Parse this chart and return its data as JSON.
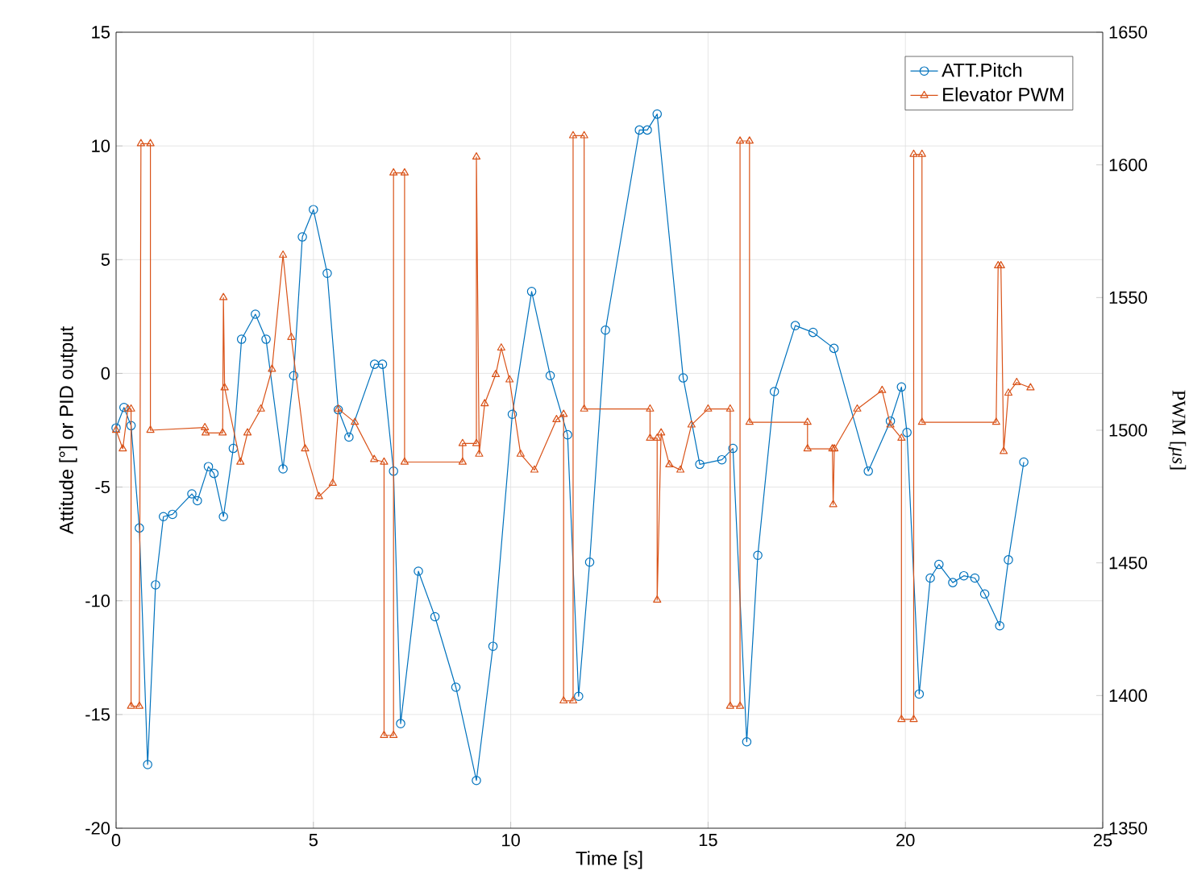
{
  "chart_data": {
    "type": "line",
    "xlabel": "Time [s]",
    "ylabel": "Attitude [°] or PID output",
    "y2label": "PWM [*μs*]",
    "xlim": [
      0,
      25
    ],
    "xticks": [
      0,
      5,
      10,
      15,
      20,
      25
    ],
    "ylim": [
      -20,
      15
    ],
    "yticks": [
      -20,
      -15,
      -10,
      -5,
      0,
      5,
      10,
      15
    ],
    "y2lim": [
      1350,
      1650
    ],
    "y2ticks": [
      1350,
      1400,
      1450,
      1500,
      1550,
      1600,
      1650
    ],
    "grid": true,
    "legend": "top right",
    "series": [
      {
        "name": "ATT.Pitch",
        "color": "#0072bd",
        "marker": "circle",
        "x": [
          0,
          0.2,
          0.38,
          0.59,
          0.8,
          1.0,
          1.2,
          1.43,
          1.92,
          2.06,
          2.34,
          2.48,
          2.72,
          2.97,
          3.18,
          3.53,
          3.8,
          4.23,
          4.5,
          4.72,
          5.0,
          5.35,
          5.63,
          5.9,
          6.55,
          6.75,
          7.03,
          7.21,
          7.66,
          8.08,
          8.61,
          9.13,
          9.55,
          10.04,
          10.53,
          11.0,
          11.44,
          11.72,
          12.0,
          12.4,
          13.26,
          13.46,
          13.71,
          14.37,
          14.79,
          15.35,
          15.63,
          15.98,
          16.26,
          16.68,
          17.21,
          17.66,
          18.19,
          19.06,
          19.62,
          19.9,
          20.04,
          20.35,
          20.63,
          20.85,
          21.2,
          21.48,
          21.76,
          22.01,
          22.39,
          22.61,
          23.0
        ],
        "values": [
          -2.4,
          -1.5,
          -2.3,
          -6.8,
          -17.2,
          -9.3,
          -6.3,
          -6.2,
          -5.3,
          -5.6,
          -4.1,
          -4.4,
          -6.3,
          -3.3,
          1.5,
          2.6,
          1.5,
          -4.2,
          -0.1,
          6.0,
          7.2,
          4.4,
          -1.6,
          -2.8,
          0.4,
          0.4,
          -4.3,
          -15.4,
          -8.7,
          -10.7,
          -13.8,
          -17.9,
          -12.0,
          -1.8,
          3.6,
          -0.1,
          -2.7,
          -14.2,
          -8.3,
          1.9,
          10.7,
          10.7,
          11.4,
          -0.2,
          -4.0,
          -3.8,
          -3.3,
          -16.2,
          -8.0,
          -0.8,
          2.1,
          1.8,
          1.1,
          -4.3,
          -2.1,
          -0.6,
          -2.6,
          -14.1,
          -9.0,
          -8.4,
          -9.2,
          -8.9,
          -9.0,
          -9.7,
          -11.1,
          -8.2,
          -3.9
        ]
      },
      {
        "name": "Elevator PWM",
        "color": "#d95319",
        "marker": "triangle",
        "axis": "y2",
        "x": [
          0,
          0.17,
          0.3,
          0.38,
          0.38,
          0.59,
          0.63,
          0.87,
          0.87,
          2.25,
          2.27,
          2.7,
          2.72,
          2.75,
          3.15,
          3.33,
          3.67,
          3.95,
          4.23,
          4.44,
          4.79,
          5.14,
          5.49,
          5.63,
          6.05,
          6.54,
          6.79,
          6.79,
          7.03,
          7.03,
          7.31,
          7.31,
          8.78,
          8.78,
          9.13,
          9.13,
          9.2,
          9.34,
          9.62,
          9.76,
          9.97,
          10.25,
          10.6,
          11.16,
          11.34,
          11.34,
          11.58,
          11.58,
          11.86,
          11.86,
          13.53,
          13.53,
          13.71,
          13.71,
          13.81,
          14.02,
          14.3,
          14.58,
          15.0,
          15.56,
          15.56,
          15.81,
          15.81,
          16.05,
          16.05,
          17.52,
          17.52,
          18.15,
          18.17,
          18.2,
          18.78,
          19.41,
          19.62,
          19.9,
          19.9,
          20.21,
          20.21,
          20.42,
          20.42,
          22.3,
          22.35,
          22.42,
          22.49,
          22.61,
          22.82,
          23.17
        ],
        "values": [
          1500,
          1493,
          1508,
          1508,
          1396,
          1396,
          1608,
          1608,
          1500,
          1501,
          1499,
          1499,
          1550,
          1516,
          1488,
          1499,
          1508,
          1523,
          1566,
          1535,
          1493,
          1475,
          1480,
          1508,
          1503,
          1489,
          1488,
          1385,
          1385,
          1597,
          1597,
          1488,
          1488,
          1495,
          1495,
          1603,
          1491,
          1510,
          1521,
          1531,
          1519,
          1491,
          1485,
          1504,
          1506,
          1398,
          1398,
          1611,
          1611,
          1508,
          1508,
          1497,
          1497,
          1436,
          1499,
          1487,
          1485,
          1502,
          1508,
          1508,
          1396,
          1396,
          1609,
          1609,
          1503,
          1503,
          1493,
          1493,
          1472,
          1493,
          1508,
          1515,
          1502,
          1497,
          1391,
          1391,
          1604,
          1604,
          1503,
          1503,
          1562,
          1562,
          1492,
          1514,
          1518,
          1516
        ]
      }
    ]
  }
}
